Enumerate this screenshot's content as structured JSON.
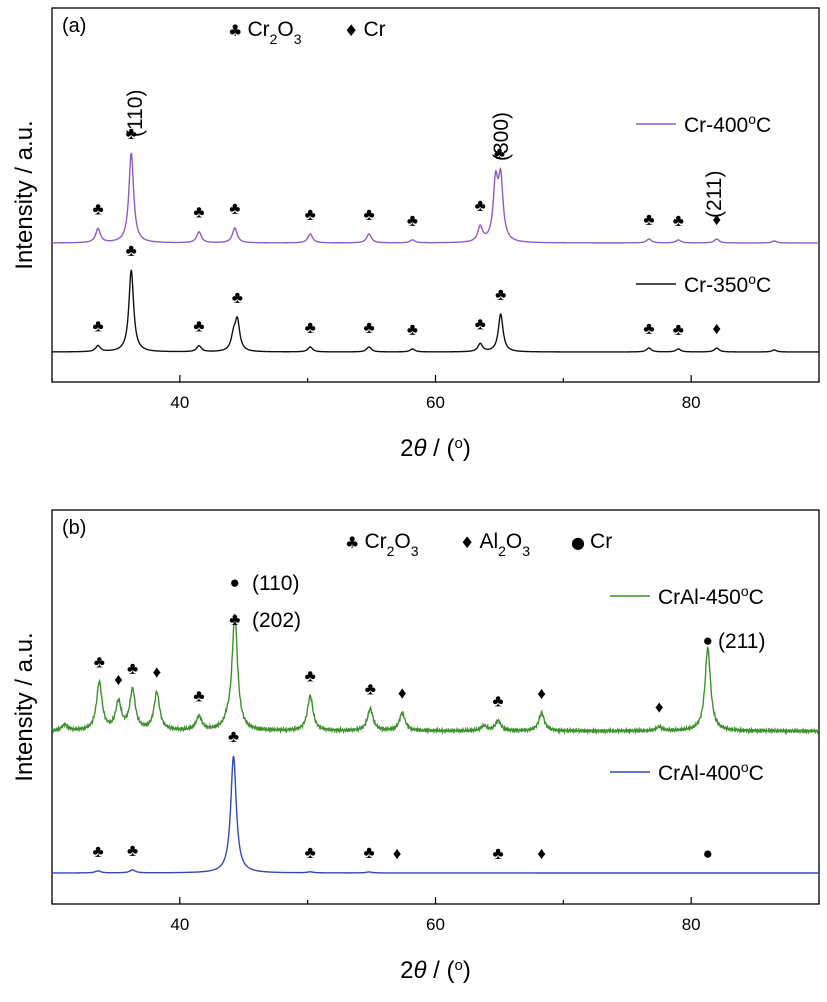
{
  "chart_data": [
    {
      "type": "line",
      "panel_label": "(a)",
      "xlabel": "2θ / (°)",
      "ylabel": "Intensity / a.u.",
      "xlim": [
        30,
        90
      ],
      "x_ticks": [
        40,
        60,
        80
      ],
      "y_ticks_shown": false,
      "phase_legend": [
        {
          "symbol": "♣",
          "base": "Cr",
          "sub1": "2",
          "mid": "O",
          "sub2": "3"
        },
        {
          "symbol": "♦",
          "base": "Cr",
          "sub1": "",
          "mid": "",
          "sub2": ""
        }
      ],
      "series": [
        {
          "name_base": "Cr-400",
          "name_sup": "o",
          "name_tail": "C",
          "color": "#8e5cc6",
          "peaks": [
            [
              33.6,
              14
            ],
            [
              36.2,
              90
            ],
            [
              41.5,
              11
            ],
            [
              44.3,
              15
            ],
            [
              50.2,
              9
            ],
            [
              54.8,
              9
            ],
            [
              58.2,
              3
            ],
            [
              63.5,
              15
            ],
            [
              64.7,
              57
            ],
            [
              65.1,
              60
            ],
            [
              76.7,
              4
            ],
            [
              79.0,
              3
            ],
            [
              82.0,
              4
            ],
            [
              86.5,
              2
            ]
          ]
        },
        {
          "name_base": "Cr-350",
          "name_sup": "o",
          "name_tail": "C",
          "color": "#111111",
          "peaks": [
            [
              33.6,
              6
            ],
            [
              36.2,
              82
            ],
            [
              41.5,
              6
            ],
            [
              44.2,
              14
            ],
            [
              44.5,
              30
            ],
            [
              50.2,
              5
            ],
            [
              54.8,
              5
            ],
            [
              58.2,
              3
            ],
            [
              63.5,
              8
            ],
            [
              65.1,
              38
            ],
            [
              76.7,
              4
            ],
            [
              79.0,
              3
            ],
            [
              82.0,
              4
            ],
            [
              86.5,
              2
            ]
          ]
        }
      ],
      "annotations": [
        {
          "text": "(110)",
          "x": 36.2,
          "rotate": true
        },
        {
          "text": "(300)",
          "x": 65.0,
          "rotate": true
        },
        {
          "text": "(211)",
          "x": 82.0,
          "rotate": true
        }
      ],
      "markers": [
        {
          "symbol": "♣",
          "x": 33.6,
          "series": 0
        },
        {
          "symbol": "♣",
          "x": 36.2,
          "series": 0
        },
        {
          "symbol": "♣",
          "x": 41.5,
          "series": 0
        },
        {
          "symbol": "♣",
          "x": 44.3,
          "series": 0
        },
        {
          "symbol": "♣",
          "x": 50.2,
          "series": 0
        },
        {
          "symbol": "♣",
          "x": 54.8,
          "series": 0
        },
        {
          "symbol": "♣",
          "x": 58.2,
          "series": 0
        },
        {
          "symbol": "♣",
          "x": 63.5,
          "series": 0
        },
        {
          "symbol": "♣",
          "x": 65.0,
          "series": 0
        },
        {
          "symbol": "♣",
          "x": 76.7,
          "series": 0
        },
        {
          "symbol": "♣",
          "x": 79.0,
          "series": 0
        },
        {
          "symbol": "♦",
          "x": 82.0,
          "series": 0
        },
        {
          "symbol": "♣",
          "x": 33.6,
          "series": 1
        },
        {
          "symbol": "♣",
          "x": 36.2,
          "series": 1
        },
        {
          "symbol": "♣",
          "x": 41.5,
          "series": 1
        },
        {
          "symbol": "♣",
          "x": 44.5,
          "series": 1
        },
        {
          "symbol": "♣",
          "x": 50.2,
          "series": 1
        },
        {
          "symbol": "♣",
          "x": 54.8,
          "series": 1
        },
        {
          "symbol": "♣",
          "x": 58.2,
          "series": 1
        },
        {
          "symbol": "♣",
          "x": 63.5,
          "series": 1
        },
        {
          "symbol": "♣",
          "x": 65.1,
          "series": 1
        },
        {
          "symbol": "♣",
          "x": 76.7,
          "series": 1
        },
        {
          "symbol": "♣",
          "x": 79.0,
          "series": 1
        },
        {
          "symbol": "♦",
          "x": 82.0,
          "series": 1
        }
      ]
    },
    {
      "type": "line",
      "panel_label": "(b)",
      "xlabel": "2θ / (°)",
      "ylabel": "Intensity / a.u.",
      "xlim": [
        30,
        90
      ],
      "x_ticks": [
        40,
        60,
        80
      ],
      "y_ticks_shown": false,
      "phase_legend": [
        {
          "symbol": "♣",
          "base": "Cr",
          "sub1": "2",
          "mid": "O",
          "sub2": "3"
        },
        {
          "symbol": "♦",
          "base": "Al",
          "sub1": "2",
          "mid": "O",
          "sub2": "3"
        },
        {
          "symbol": "●",
          "base": "Cr",
          "sub1": "",
          "mid": "",
          "sub2": ""
        }
      ],
      "series": [
        {
          "name_base": "CrAl-450",
          "name_sup": "o",
          "name_tail": "C",
          "color": "#3f8f2e",
          "peaks": [
            [
              31.0,
              6
            ],
            [
              33.7,
              48
            ],
            [
              35.2,
              28
            ],
            [
              36.3,
              40
            ],
            [
              38.2,
              38
            ],
            [
              41.5,
              14
            ],
            [
              43.7,
              6
            ],
            [
              44.3,
              115
            ],
            [
              50.2,
              35
            ],
            [
              54.9,
              22
            ],
            [
              57.4,
              18
            ],
            [
              63.8,
              5
            ],
            [
              64.9,
              10
            ],
            [
              68.3,
              18
            ],
            [
              77.5,
              4
            ],
            [
              81.3,
              83
            ]
          ],
          "noise": 2.5
        },
        {
          "name_base": "CrAl-400",
          "name_sup": "o",
          "name_tail": "C",
          "color": "#3348b8",
          "peaks": [
            [
              33.6,
              2
            ],
            [
              36.3,
              3
            ],
            [
              44.2,
              117
            ],
            [
              50.2,
              1
            ],
            [
              54.8,
              1
            ]
          ]
        }
      ],
      "annotations": [
        {
          "text": "(110)",
          "x": 44.3,
          "rotate": false,
          "symbol": "●"
        },
        {
          "text": "(202)",
          "x": 44.3,
          "rotate": false,
          "symbol": "♣"
        },
        {
          "text": "(211)",
          "x": 81.3,
          "rotate": false,
          "symbol": "●"
        }
      ],
      "markers": [
        {
          "symbol": "♣",
          "x": 33.7,
          "series": 0
        },
        {
          "symbol": "♦",
          "x": 35.2,
          "series": 0
        },
        {
          "symbol": "♣",
          "x": 36.3,
          "series": 0
        },
        {
          "symbol": "♦",
          "x": 38.2,
          "series": 0
        },
        {
          "symbol": "♣",
          "x": 41.5,
          "series": 0
        },
        {
          "symbol": "♣",
          "x": 50.2,
          "series": 0
        },
        {
          "symbol": "♣",
          "x": 54.9,
          "series": 0
        },
        {
          "symbol": "♦",
          "x": 57.4,
          "series": 0
        },
        {
          "symbol": "♣",
          "x": 64.9,
          "series": 0
        },
        {
          "symbol": "♦",
          "x": 68.3,
          "series": 0
        },
        {
          "symbol": "♦",
          "x": 77.5,
          "series": 0
        },
        {
          "symbol": "♣",
          "x": 33.6,
          "series": 1
        },
        {
          "symbol": "♣",
          "x": 36.3,
          "series": 1
        },
        {
          "symbol": "♣",
          "x": 44.2,
          "series": 1
        },
        {
          "symbol": "♣",
          "x": 50.2,
          "series": 1
        },
        {
          "symbol": "♣",
          "x": 54.8,
          "series": 1
        },
        {
          "symbol": "♦",
          "x": 57.0,
          "series": 1
        },
        {
          "symbol": "♣",
          "x": 64.9,
          "series": 1
        },
        {
          "symbol": "♦",
          "x": 68.3,
          "series": 1
        },
        {
          "symbol": "●",
          "x": 81.3,
          "series": 1
        }
      ]
    }
  ]
}
